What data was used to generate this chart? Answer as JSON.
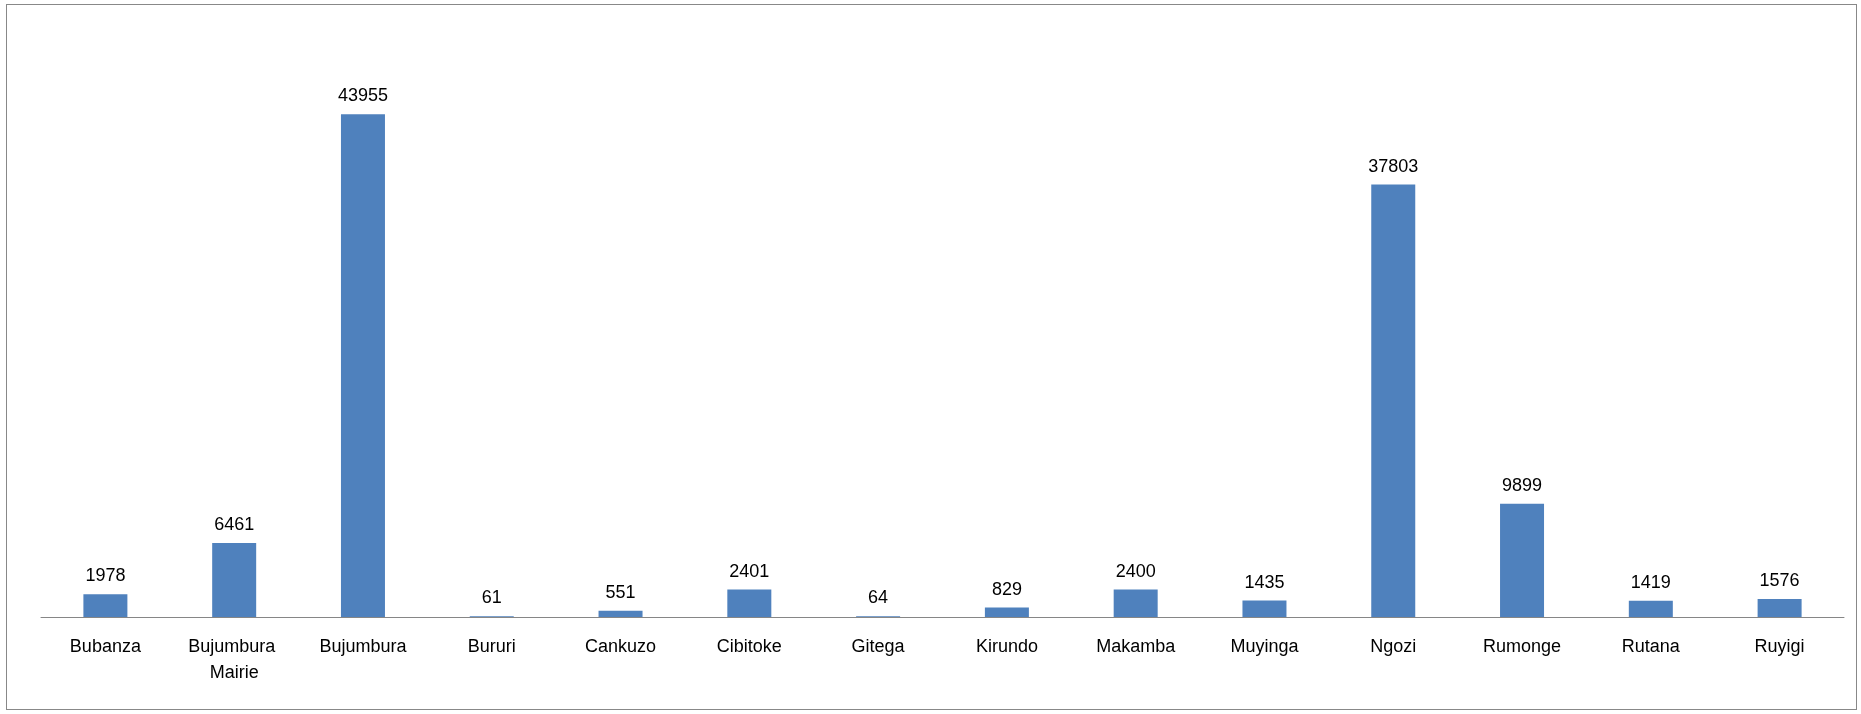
{
  "chart_data": {
    "type": "bar",
    "categories": [
      "Bubanza",
      "Bujumbura Mairie",
      "Bujumbura",
      "Bururi",
      "Cankuzo",
      "Cibitoke",
      "Gitega",
      "Kirundo",
      "Makamba",
      "Muyinga",
      "Ngozi",
      "Rumonge",
      "Rutana",
      "Ruyigi"
    ],
    "values": [
      1978,
      6461,
      43955,
      61,
      551,
      2401,
      64,
      829,
      2400,
      1435,
      37803,
      9899,
      1419,
      1576
    ],
    "color": "#4f81bd",
    "data_labels": true
  }
}
